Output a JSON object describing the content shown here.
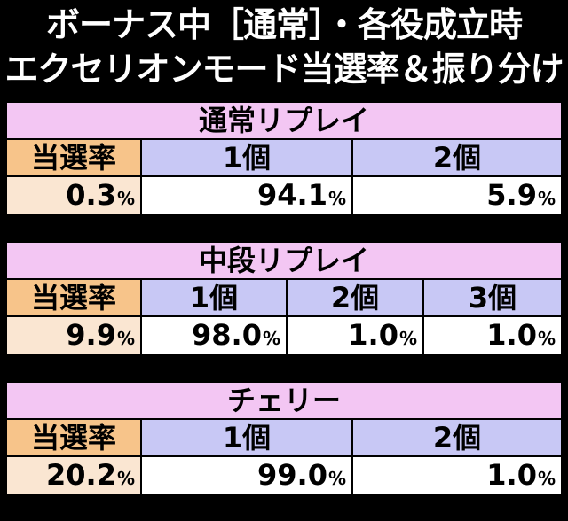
{
  "header": {
    "line1": "ボーナス中［通常］・各役成立時",
    "line2": "エクセリオンモード当選率＆振り分け"
  },
  "sections": [
    {
      "title": "通常リプレイ",
      "label": "当選率",
      "columns": [
        "1個",
        "2個"
      ],
      "rate": "0.3",
      "values": [
        "94.1",
        "5.9"
      ]
    },
    {
      "title": "中段リプレイ",
      "label": "当選率",
      "columns": [
        "1個",
        "2個",
        "3個"
      ],
      "rate": "9.9",
      "values": [
        "98.0",
        "1.0",
        "1.0"
      ]
    },
    {
      "title": "チェリー",
      "label": "当選率",
      "columns": [
        "1個",
        "2個"
      ],
      "rate": "20.2",
      "values": [
        "99.0",
        "1.0"
      ]
    }
  ],
  "percent_sign": "%",
  "colors": {
    "background": "#000000",
    "title_bg": "#f3c6f3",
    "label_bg": "#f7c48a",
    "column_head_bg": "#c8c8f5",
    "rate_bg": "#fae6d2",
    "value_bg": "#ffffff"
  }
}
